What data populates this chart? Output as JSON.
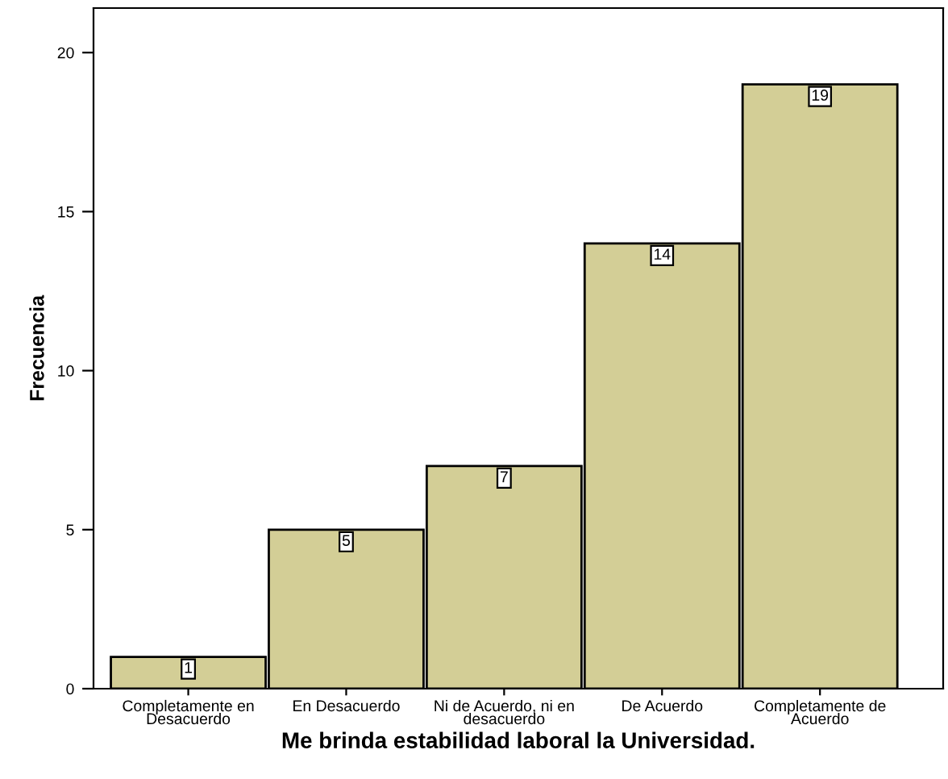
{
  "chart_data": {
    "type": "bar",
    "xlabel": "Me brinda estabilidad laboral la Universidad.",
    "ylabel": "Frecuencia",
    "categories": [
      "Completamente en\nDesacuerdo",
      "En Desacuerdo",
      "Ni de Acuerdo, ni en\ndesacuerdo",
      "De Acuerdo",
      "Completamente de\nAcuerdo"
    ],
    "values": [
      1,
      5,
      7,
      14,
      19
    ],
    "color": "#d3ce96",
    "ylim": [
      0,
      21.4
    ],
    "yticks": [
      0,
      5,
      10,
      15,
      20
    ],
    "grid": false,
    "data_labels": true
  }
}
